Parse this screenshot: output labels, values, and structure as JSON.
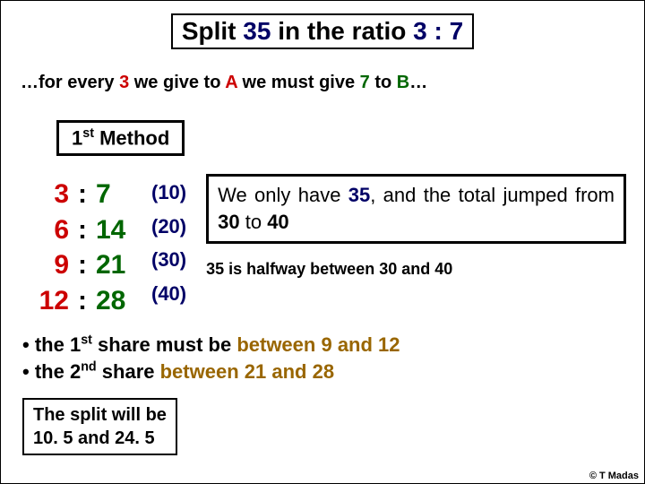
{
  "colors": {
    "navy": "#000066",
    "red": "#cc0000",
    "brown": "#996600",
    "green": "#006600",
    "black": "#000000"
  },
  "title": {
    "pre": "Split ",
    "n": "35",
    "mid": " in the ratio ",
    "ratio": "3 : 7"
  },
  "subtitle": {
    "pre": "…for every ",
    "a": "3",
    "mid1": " we give to ",
    "aName": "A",
    "mid2": " we must give ",
    "b": "7",
    "mid3": " to ",
    "bName": "B",
    "post": "…"
  },
  "method": {
    "ord": "1",
    "sup": "st",
    "word": " Method"
  },
  "rows": [
    {
      "a": "3",
      "b": "7",
      "sum": "(10)"
    },
    {
      "a": "6",
      "b": "14",
      "sum": "(20)"
    },
    {
      "a": "9",
      "b": "21",
      "sum": "(30)"
    },
    {
      "a": "12",
      "b": "28",
      "sum": "(40)"
    }
  ],
  "note": {
    "p1": "We only have ",
    "v1": "35",
    "p2": ", and the total jumped from ",
    "v2": "30",
    "p3": " to ",
    "v3": "40"
  },
  "halfway": "35 is halfway between 30 and 40",
  "bul1": {
    "pre": "the ",
    "ord": "1",
    "sup": "st",
    "mid": " share must be ",
    "range_pre": "between ",
    "lo": "9",
    "and": " and ",
    "hi": "12"
  },
  "bul2": {
    "pre": "the ",
    "ord": "2",
    "sup": "nd",
    "mid": " share ",
    "range_pre": "between ",
    "lo": "21",
    "and": " and ",
    "hi": "28"
  },
  "answer": {
    "l1": "The split will be",
    "l2a": "10. 5",
    "l2and": " and ",
    "l2b": "24. 5"
  },
  "credit": "© T Madas"
}
